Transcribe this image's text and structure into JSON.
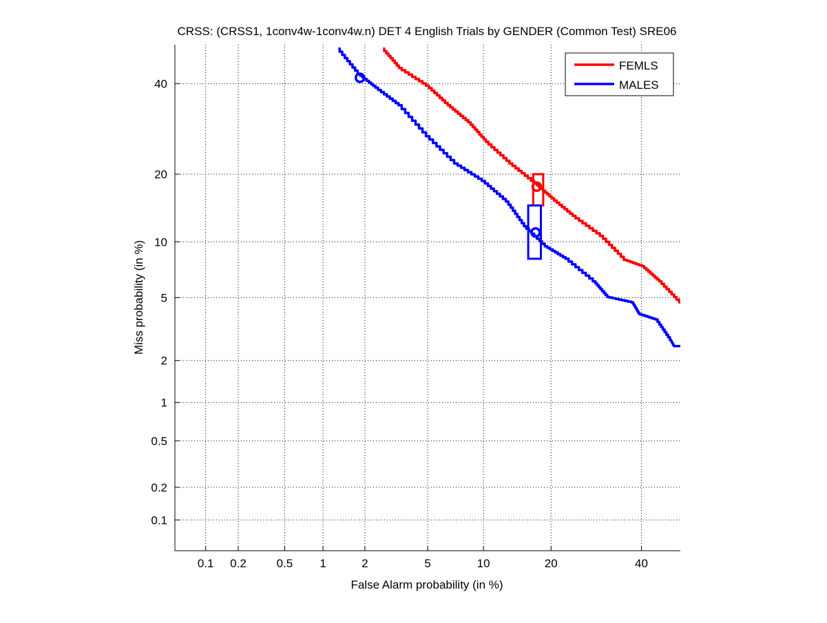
{
  "chart_data": {
    "type": "line",
    "title": "CRSS: (CRSS1, 1conv4w-1conv4w.n) DET 4 English Trials by GENDER (Common Test) SRE06",
    "xlabel": "False Alarm probability (in %)",
    "ylabel": "Miss probability (in %)",
    "xscale": "normal-deviate",
    "yscale": "normal-deviate",
    "xlim": [
      0.05,
      50
    ],
    "ylim": [
      0.05,
      50
    ],
    "xticks": [
      0.1,
      0.2,
      0.5,
      1,
      2,
      5,
      10,
      20,
      40
    ],
    "xtick_labels": [
      "0.1",
      "0.2",
      "0.5",
      "1",
      "2",
      "5",
      "10",
      "20",
      "40"
    ],
    "yticks": [
      0.1,
      0.2,
      0.5,
      1,
      2,
      5,
      10,
      20,
      40
    ],
    "ytick_labels": [
      "0.1",
      "0.2",
      "0.5",
      "1",
      "2",
      "5",
      "10",
      "20",
      "40"
    ],
    "grid": true,
    "legend_position": "top-right",
    "series": [
      {
        "name": "FEMLS",
        "color": "#ff0000",
        "x": [
          2.65,
          3.4,
          5.0,
          6.6,
          8.5,
          10.4,
          13.5,
          17.3,
          20.3,
          24.4,
          30.4,
          36,
          40.4,
          44.8,
          50
        ],
        "y": [
          49,
          44,
          39.5,
          34.7,
          30.7,
          26.4,
          22,
          18.4,
          15.9,
          13.3,
          10.7,
          8.1,
          7.5,
          6.2,
          4.7
        ],
        "marker_circle": {
          "x": 17.5,
          "y": 17.8
        },
        "box": {
          "x": [
            16.9,
            18.6
          ],
          "y": [
            14.8,
            20
          ]
        }
      },
      {
        "name": "MALES",
        "color": "#0000ff",
        "x": [
          1.3,
          1.82,
          2.4,
          3.4,
          5.0,
          7.2,
          10,
          13,
          15.6,
          19.1,
          23,
          28.8,
          31.9,
          37.8,
          39.5,
          43.9,
          47.5,
          48.4,
          50
        ],
        "y": [
          49,
          42.5,
          39,
          34.7,
          27.6,
          22,
          18.8,
          15.4,
          11.9,
          9.5,
          8.2,
          6.2,
          5.05,
          4.7,
          4.0,
          3.7,
          2.75,
          2.5,
          2.5
        ],
        "marker_circle": {
          "x": 1.85,
          "y": 41.5
        },
        "marker_circle2": {
          "x": 17.3,
          "y": 11.1
        },
        "box": {
          "x": [
            16.1,
            18.2
          ],
          "y": [
            8.2,
            14.8
          ]
        }
      }
    ]
  }
}
